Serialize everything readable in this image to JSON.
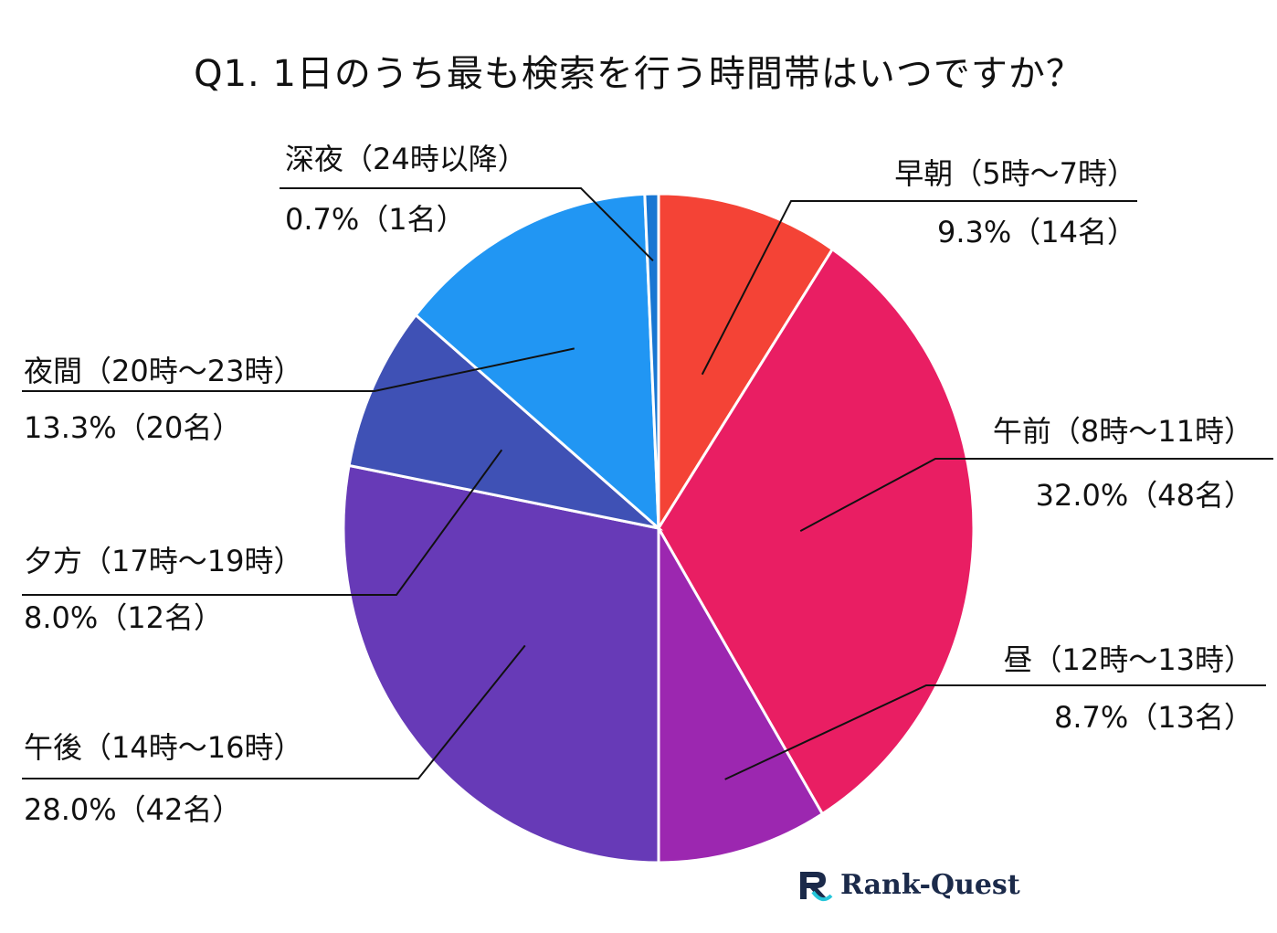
{
  "chart_data": {
    "type": "pie",
    "title": "Q1. 1日のうち最も検索を行う時間帯はいつですか？",
    "slices": [
      {
        "label": "早朝（5時〜7時）",
        "percent": 9.3,
        "value_text": "9.3%（14名）",
        "count": 14,
        "color": "#f44336"
      },
      {
        "label": "午前（8時〜11時）",
        "percent": 32.0,
        "value_text": "32.0%（48名）",
        "count": 48,
        "color": "#e91e63"
      },
      {
        "label": "昼（12時〜13時）",
        "percent": 8.7,
        "value_text": "8.7%（13名）",
        "count": 13,
        "color": "#9c27b0"
      },
      {
        "label": "午後（14時〜16時）",
        "percent": 28.0,
        "value_text": "28.0%（42名）",
        "count": 42,
        "color": "#673ab7"
      },
      {
        "label": "夕方（17時〜19時）",
        "percent": 8.0,
        "value_text": "8.0%（12名）",
        "count": 12,
        "color": "#3f51b5"
      },
      {
        "label": "夜間（20時〜23時）",
        "percent": 13.3,
        "value_text": "13.3%（20名）",
        "count": 20,
        "color": "#2196f3"
      },
      {
        "label": "深夜（24時以降）",
        "percent": 0.7,
        "value_text": "0.7%（1名）",
        "count": 1,
        "color": "#1976d2"
      }
    ]
  },
  "logo": {
    "text": "Rank-Quest"
  }
}
